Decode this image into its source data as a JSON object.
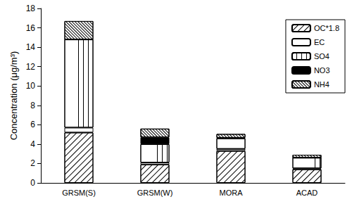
{
  "chart_data": {
    "type": "bar",
    "stacked": true,
    "grid": false,
    "legend": "upper right",
    "y_label": "Concentration (μg/m³)",
    "categories": [
      "GRSM(S)",
      "GRSM(W)",
      "MORA",
      "ACAD"
    ],
    "series": [
      {
        "name": "OC*1.8",
        "color": "#ffffff",
        "values": [
          5.2,
          1.9,
          3.3,
          1.4
        ]
      },
      {
        "name": "EC",
        "color": "#ffffff",
        "values": [
          0.5,
          0.2,
          0.2,
          0.1
        ]
      },
      {
        "name": "SO4",
        "color": "#ffffff",
        "values": [
          9.1,
          1.9,
          1.1,
          1.1
        ]
      },
      {
        "name": "NO3",
        "color": "#000000",
        "values": [
          0,
          0.7,
          0.05,
          0
        ]
      },
      {
        "name": "NH4",
        "color": "#ffffff",
        "values": [
          1.9,
          0.9,
          0.4,
          0.3
        ]
      }
    ],
    "ylim": [
      0,
      18
    ],
    "yticks": [
      0,
      2,
      4,
      6,
      8,
      10,
      12,
      14,
      16,
      18
    ]
  }
}
